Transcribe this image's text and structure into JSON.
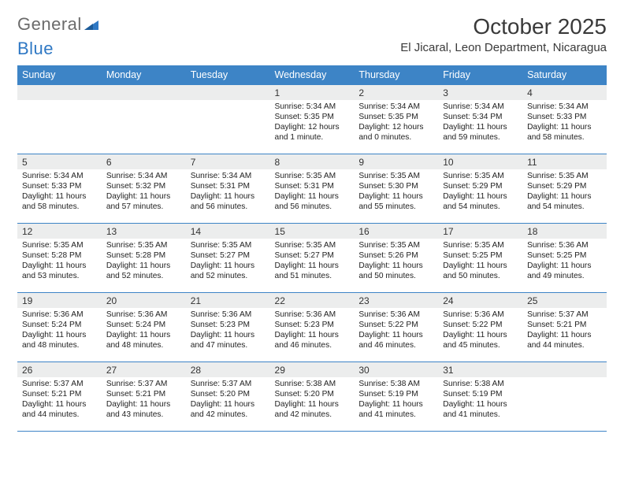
{
  "logo": {
    "part1": "General",
    "part2": "Blue"
  },
  "title": "October 2025",
  "location": "El Jicaral, Leon Department, Nicaragua",
  "colors": {
    "header_bg": "#3d84c6",
    "header_text": "#ffffff",
    "daynum_bg": "#eceded",
    "border": "#3d84c6",
    "logo_gray": "#6b6b6b",
    "logo_blue": "#2f78c4"
  },
  "day_names": [
    "Sunday",
    "Monday",
    "Tuesday",
    "Wednesday",
    "Thursday",
    "Friday",
    "Saturday"
  ],
  "weeks": [
    [
      {
        "n": "",
        "sr": "",
        "ss": "",
        "dl": ""
      },
      {
        "n": "",
        "sr": "",
        "ss": "",
        "dl": ""
      },
      {
        "n": "",
        "sr": "",
        "ss": "",
        "dl": ""
      },
      {
        "n": "1",
        "sr": "Sunrise: 5:34 AM",
        "ss": "Sunset: 5:35 PM",
        "dl": "Daylight: 12 hours and 1 minute."
      },
      {
        "n": "2",
        "sr": "Sunrise: 5:34 AM",
        "ss": "Sunset: 5:35 PM",
        "dl": "Daylight: 12 hours and 0 minutes."
      },
      {
        "n": "3",
        "sr": "Sunrise: 5:34 AM",
        "ss": "Sunset: 5:34 PM",
        "dl": "Daylight: 11 hours and 59 minutes."
      },
      {
        "n": "4",
        "sr": "Sunrise: 5:34 AM",
        "ss": "Sunset: 5:33 PM",
        "dl": "Daylight: 11 hours and 58 minutes."
      }
    ],
    [
      {
        "n": "5",
        "sr": "Sunrise: 5:34 AM",
        "ss": "Sunset: 5:33 PM",
        "dl": "Daylight: 11 hours and 58 minutes."
      },
      {
        "n": "6",
        "sr": "Sunrise: 5:34 AM",
        "ss": "Sunset: 5:32 PM",
        "dl": "Daylight: 11 hours and 57 minutes."
      },
      {
        "n": "7",
        "sr": "Sunrise: 5:34 AM",
        "ss": "Sunset: 5:31 PM",
        "dl": "Daylight: 11 hours and 56 minutes."
      },
      {
        "n": "8",
        "sr": "Sunrise: 5:35 AM",
        "ss": "Sunset: 5:31 PM",
        "dl": "Daylight: 11 hours and 56 minutes."
      },
      {
        "n": "9",
        "sr": "Sunrise: 5:35 AM",
        "ss": "Sunset: 5:30 PM",
        "dl": "Daylight: 11 hours and 55 minutes."
      },
      {
        "n": "10",
        "sr": "Sunrise: 5:35 AM",
        "ss": "Sunset: 5:29 PM",
        "dl": "Daylight: 11 hours and 54 minutes."
      },
      {
        "n": "11",
        "sr": "Sunrise: 5:35 AM",
        "ss": "Sunset: 5:29 PM",
        "dl": "Daylight: 11 hours and 54 minutes."
      }
    ],
    [
      {
        "n": "12",
        "sr": "Sunrise: 5:35 AM",
        "ss": "Sunset: 5:28 PM",
        "dl": "Daylight: 11 hours and 53 minutes."
      },
      {
        "n": "13",
        "sr": "Sunrise: 5:35 AM",
        "ss": "Sunset: 5:28 PM",
        "dl": "Daylight: 11 hours and 52 minutes."
      },
      {
        "n": "14",
        "sr": "Sunrise: 5:35 AM",
        "ss": "Sunset: 5:27 PM",
        "dl": "Daylight: 11 hours and 52 minutes."
      },
      {
        "n": "15",
        "sr": "Sunrise: 5:35 AM",
        "ss": "Sunset: 5:27 PM",
        "dl": "Daylight: 11 hours and 51 minutes."
      },
      {
        "n": "16",
        "sr": "Sunrise: 5:35 AM",
        "ss": "Sunset: 5:26 PM",
        "dl": "Daylight: 11 hours and 50 minutes."
      },
      {
        "n": "17",
        "sr": "Sunrise: 5:35 AM",
        "ss": "Sunset: 5:25 PM",
        "dl": "Daylight: 11 hours and 50 minutes."
      },
      {
        "n": "18",
        "sr": "Sunrise: 5:36 AM",
        "ss": "Sunset: 5:25 PM",
        "dl": "Daylight: 11 hours and 49 minutes."
      }
    ],
    [
      {
        "n": "19",
        "sr": "Sunrise: 5:36 AM",
        "ss": "Sunset: 5:24 PM",
        "dl": "Daylight: 11 hours and 48 minutes."
      },
      {
        "n": "20",
        "sr": "Sunrise: 5:36 AM",
        "ss": "Sunset: 5:24 PM",
        "dl": "Daylight: 11 hours and 48 minutes."
      },
      {
        "n": "21",
        "sr": "Sunrise: 5:36 AM",
        "ss": "Sunset: 5:23 PM",
        "dl": "Daylight: 11 hours and 47 minutes."
      },
      {
        "n": "22",
        "sr": "Sunrise: 5:36 AM",
        "ss": "Sunset: 5:23 PM",
        "dl": "Daylight: 11 hours and 46 minutes."
      },
      {
        "n": "23",
        "sr": "Sunrise: 5:36 AM",
        "ss": "Sunset: 5:22 PM",
        "dl": "Daylight: 11 hours and 46 minutes."
      },
      {
        "n": "24",
        "sr": "Sunrise: 5:36 AM",
        "ss": "Sunset: 5:22 PM",
        "dl": "Daylight: 11 hours and 45 minutes."
      },
      {
        "n": "25",
        "sr": "Sunrise: 5:37 AM",
        "ss": "Sunset: 5:21 PM",
        "dl": "Daylight: 11 hours and 44 minutes."
      }
    ],
    [
      {
        "n": "26",
        "sr": "Sunrise: 5:37 AM",
        "ss": "Sunset: 5:21 PM",
        "dl": "Daylight: 11 hours and 44 minutes."
      },
      {
        "n": "27",
        "sr": "Sunrise: 5:37 AM",
        "ss": "Sunset: 5:21 PM",
        "dl": "Daylight: 11 hours and 43 minutes."
      },
      {
        "n": "28",
        "sr": "Sunrise: 5:37 AM",
        "ss": "Sunset: 5:20 PM",
        "dl": "Daylight: 11 hours and 42 minutes."
      },
      {
        "n": "29",
        "sr": "Sunrise: 5:38 AM",
        "ss": "Sunset: 5:20 PM",
        "dl": "Daylight: 11 hours and 42 minutes."
      },
      {
        "n": "30",
        "sr": "Sunrise: 5:38 AM",
        "ss": "Sunset: 5:19 PM",
        "dl": "Daylight: 11 hours and 41 minutes."
      },
      {
        "n": "31",
        "sr": "Sunrise: 5:38 AM",
        "ss": "Sunset: 5:19 PM",
        "dl": "Daylight: 11 hours and 41 minutes."
      },
      {
        "n": "",
        "sr": "",
        "ss": "",
        "dl": ""
      }
    ]
  ]
}
